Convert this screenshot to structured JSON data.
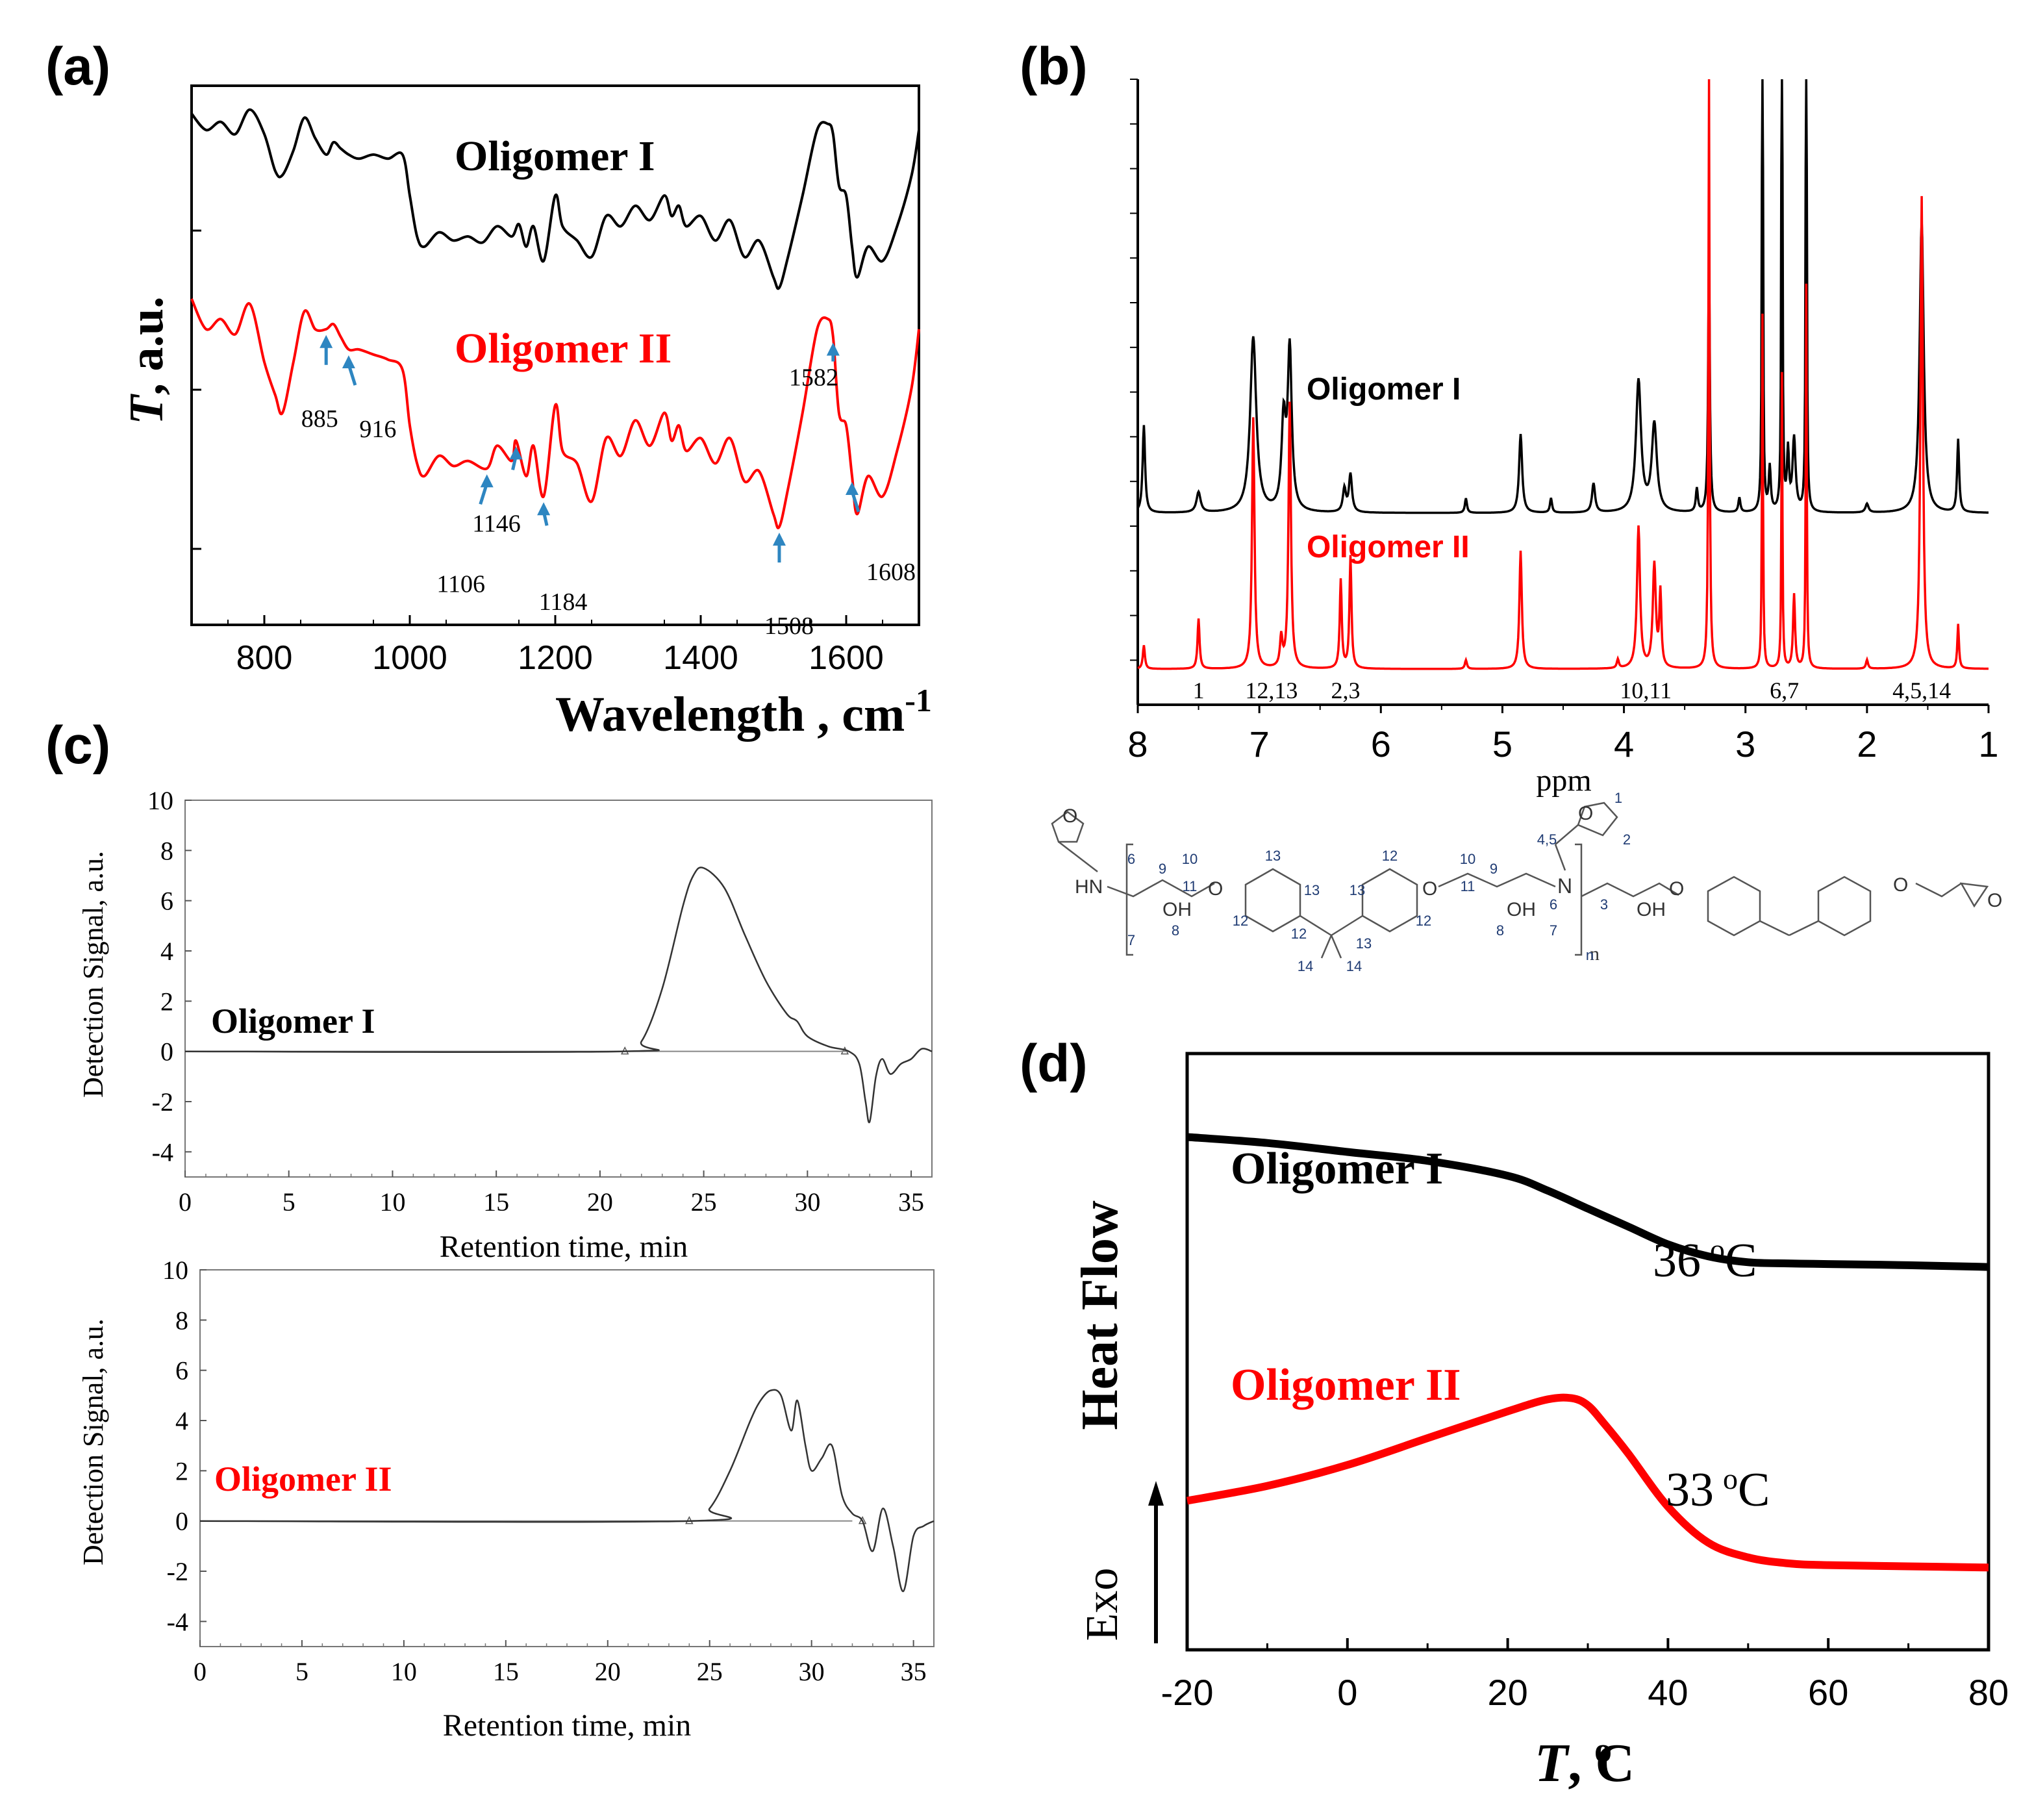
{
  "colors": {
    "black": "#000000",
    "red": "#ff0000",
    "arrow": "#2e86c1",
    "axis_gray": "#666666",
    "struct_blue": "#1f3b73"
  },
  "chart_data": [
    {
      "id": "a",
      "panel_label": "(a)",
      "type": "line",
      "title": "",
      "xlabel": "Wavelength , cm-1",
      "xlabel_main": "Wavelength , cm",
      "xlabel_sup": "-1",
      "ylabel": "T, a.u.",
      "ylabel_T": "T",
      "ylabel_rest": ", a.u.",
      "xlim": [
        700,
        1700
      ],
      "xticks": [
        "800",
        "1000",
        "1200",
        "1400",
        "1600"
      ],
      "xtick_values": [
        800,
        1000,
        1200,
        1400,
        1600
      ],
      "series": [
        {
          "name": "Oligomer I",
          "color": "#000000",
          "x": [
            700,
            720,
            740,
            760,
            780,
            800,
            815,
            825,
            840,
            855,
            870,
            885,
            895,
            905,
            916,
            930,
            950,
            970,
            990,
            1000,
            1010,
            1020,
            1040,
            1060,
            1080,
            1100,
            1120,
            1140,
            1150,
            1160,
            1170,
            1184,
            1200,
            1210,
            1230,
            1250,
            1270,
            1290,
            1310,
            1330,
            1350,
            1360,
            1370,
            1380,
            1400,
            1420,
            1440,
            1460,
            1480,
            1500,
            1508,
            1520,
            1540,
            1560,
            1575,
            1582,
            1590,
            1600,
            1608,
            1615,
            1630,
            1650,
            1670,
            1690,
            1700
          ],
          "y": [
            1.0,
            0.92,
            0.96,
            0.9,
            1.02,
            0.9,
            0.72,
            0.7,
            0.82,
            0.98,
            0.88,
            0.8,
            0.86,
            0.83,
            0.8,
            0.78,
            0.8,
            0.78,
            0.8,
            0.6,
            0.4,
            0.35,
            0.42,
            0.38,
            0.4,
            0.37,
            0.45,
            0.4,
            0.46,
            0.35,
            0.45,
            0.28,
            0.6,
            0.45,
            0.38,
            0.3,
            0.5,
            0.45,
            0.55,
            0.48,
            0.6,
            0.5,
            0.55,
            0.45,
            0.5,
            0.38,
            0.48,
            0.3,
            0.38,
            0.2,
            0.15,
            0.3,
            0.6,
            0.92,
            0.95,
            0.9,
            0.65,
            0.6,
            0.35,
            0.2,
            0.35,
            0.28,
            0.45,
            0.7,
            0.92
          ]
        },
        {
          "name": "Oligomer II",
          "color": "#ff0000",
          "x": [
            700,
            720,
            740,
            760,
            780,
            800,
            815,
            825,
            840,
            855,
            870,
            885,
            895,
            905,
            916,
            930,
            950,
            970,
            990,
            1000,
            1010,
            1020,
            1040,
            1060,
            1080,
            1106,
            1120,
            1140,
            1146,
            1160,
            1170,
            1184,
            1200,
            1210,
            1230,
            1250,
            1270,
            1290,
            1310,
            1330,
            1350,
            1360,
            1370,
            1380,
            1400,
            1420,
            1440,
            1460,
            1480,
            1500,
            1508,
            1520,
            1540,
            1560,
            1575,
            1582,
            1590,
            1600,
            1608,
            1615,
            1630,
            1650,
            1670,
            1690,
            1700
          ],
          "y": [
            1.0,
            0.88,
            0.92,
            0.86,
            0.98,
            0.75,
            0.62,
            0.55,
            0.75,
            0.95,
            0.88,
            0.88,
            0.9,
            0.85,
            0.8,
            0.8,
            0.78,
            0.76,
            0.72,
            0.5,
            0.35,
            0.3,
            0.38,
            0.34,
            0.36,
            0.33,
            0.42,
            0.36,
            0.44,
            0.3,
            0.42,
            0.22,
            0.58,
            0.4,
            0.35,
            0.2,
            0.45,
            0.38,
            0.52,
            0.42,
            0.55,
            0.44,
            0.5,
            0.4,
            0.45,
            0.35,
            0.45,
            0.28,
            0.32,
            0.15,
            0.1,
            0.25,
            0.55,
            0.88,
            0.92,
            0.85,
            0.55,
            0.5,
            0.3,
            0.15,
            0.3,
            0.22,
            0.4,
            0.65,
            0.88
          ]
        }
      ],
      "annotations": [
        {
          "text": "885",
          "x": 885
        },
        {
          "text": "916",
          "x": 916
        },
        {
          "text": "1106",
          "x": 1106
        },
        {
          "text": "1146",
          "x": 1146
        },
        {
          "text": "1184",
          "x": 1184
        },
        {
          "text": "1508",
          "x": 1508
        },
        {
          "text": "1582",
          "x": 1582
        },
        {
          "text": "1608",
          "x": 1608
        }
      ]
    },
    {
      "id": "b",
      "panel_label": "(b)",
      "type": "line",
      "title": "",
      "xlabel": "ppm",
      "ylabel": "",
      "xlim": [
        8,
        1
      ],
      "xticks": [
        "8",
        "7",
        "6",
        "5",
        "4",
        "3",
        "2",
        "1"
      ],
      "xtick_values": [
        8,
        7,
        6,
        5,
        4,
        3,
        2,
        1
      ],
      "series": [
        {
          "name": "Oligomer I",
          "color": "#000000",
          "peaks": [
            [
              7.95,
              0.3,
              0.012
            ],
            [
              7.5,
              0.07,
              0.02
            ],
            [
              7.05,
              0.6,
              0.03
            ],
            [
              6.8,
              0.3,
              0.02
            ],
            [
              6.75,
              0.55,
              0.02
            ],
            [
              6.3,
              0.08,
              0.015
            ],
            [
              6.25,
              0.13,
              0.015
            ],
            [
              5.3,
              0.05,
              0.01
            ],
            [
              4.85,
              0.27,
              0.015
            ],
            [
              4.6,
              0.05,
              0.01
            ],
            [
              4.25,
              0.1,
              0.015
            ],
            [
              3.88,
              0.45,
              0.025
            ],
            [
              3.75,
              0.3,
              0.025
            ],
            [
              3.4,
              0.08,
              0.01
            ],
            [
              3.3,
              0.9,
              0.008
            ],
            [
              3.05,
              0.05,
              0.01
            ],
            [
              2.86,
              3.0,
              0.004
            ],
            [
              2.8,
              0.15,
              0.01
            ],
            [
              2.7,
              3.0,
              0.004
            ],
            [
              2.65,
              0.2,
              0.01
            ],
            [
              2.6,
              0.25,
              0.015
            ],
            [
              2.5,
              3.0,
              0.004
            ],
            [
              2.0,
              0.03,
              0.015
            ],
            [
              1.55,
              1.0,
              0.02
            ],
            [
              1.25,
              0.25,
              0.01
            ]
          ]
        },
        {
          "name": "Oligomer II",
          "color": "#ff0000",
          "peaks": [
            [
              7.95,
              0.08,
              0.01
            ],
            [
              7.5,
              0.17,
              0.01
            ],
            [
              7.05,
              0.85,
              0.012
            ],
            [
              6.82,
              0.1,
              0.012
            ],
            [
              6.75,
              0.9,
              0.012
            ],
            [
              6.33,
              0.3,
              0.01
            ],
            [
              6.25,
              0.38,
              0.01
            ],
            [
              5.3,
              0.03,
              0.01
            ],
            [
              4.85,
              0.4,
              0.012
            ],
            [
              4.05,
              0.03,
              0.01
            ],
            [
              3.88,
              0.48,
              0.015
            ],
            [
              3.75,
              0.35,
              0.015
            ],
            [
              3.7,
              0.25,
              0.01
            ],
            [
              3.3,
              2.0,
              0.006
            ],
            [
              2.86,
              1.2,
              0.005
            ],
            [
              2.7,
              1.0,
              0.005
            ],
            [
              2.6,
              0.25,
              0.01
            ],
            [
              2.5,
              1.3,
              0.005
            ],
            [
              2.0,
              0.03,
              0.01
            ],
            [
              1.55,
              1.6,
              0.012
            ],
            [
              1.25,
              0.15,
              0.008
            ]
          ]
        }
      ],
      "peak_labels": [
        {
          "text": "1",
          "ppm": 7.5
        },
        {
          "text": "12,13",
          "ppm": 6.9
        },
        {
          "text": "2,3",
          "ppm": 6.29
        },
        {
          "text": "10,11",
          "ppm": 3.82
        },
        {
          "text": "6,7",
          "ppm": 2.68
        },
        {
          "text": "4,5,14",
          "ppm": 1.55
        }
      ]
    },
    {
      "id": "c1",
      "panel_label": "(c)",
      "type": "line",
      "title": "",
      "xlabel": "Retention time, min",
      "ylabel": "Detection Signal, a.u.",
      "xlim": [
        0,
        36
      ],
      "ylim": [
        -5,
        10
      ],
      "xticks": [
        "0",
        "5",
        "10",
        "15",
        "20",
        "25",
        "30",
        "35"
      ],
      "xtick_values": [
        0,
        5,
        10,
        15,
        20,
        25,
        30,
        35
      ],
      "yticks": [
        "10",
        "8",
        "6",
        "4",
        "2",
        "0",
        "-2",
        "-4"
      ],
      "ytick_values": [
        10,
        8,
        6,
        4,
        2,
        0,
        -2,
        -4
      ],
      "series": [
        {
          "name": "Oligomer I",
          "color": "#000000",
          "x": [
            0,
            21,
            22,
            23,
            24,
            24.5,
            25,
            26,
            27,
            28,
            29,
            29.5,
            30,
            31,
            32,
            32.5,
            32.8,
            33,
            33.3,
            33.6,
            34,
            34.5,
            35,
            35.5,
            36
          ],
          "y": [
            0,
            0,
            0.4,
            2.5,
            5.8,
            7.0,
            7.3,
            6.5,
            4.6,
            2.8,
            1.5,
            1.2,
            0.6,
            0.2,
            0,
            -0.5,
            -2.0,
            -2.8,
            -1.0,
            -0.3,
            -0.9,
            -0.5,
            -0.3,
            0.1,
            0
          ]
        }
      ]
    },
    {
      "id": "c2",
      "panel_label": "",
      "type": "line",
      "title": "",
      "xlabel": "Retention time, min",
      "ylabel": "Detection Signal, a.u.",
      "xlim": [
        0,
        36
      ],
      "ylim": [
        -5,
        10
      ],
      "xticks": [
        "0",
        "5",
        "10",
        "15",
        "20",
        "25",
        "30",
        "35"
      ],
      "xtick_values": [
        0,
        5,
        10,
        15,
        20,
        25,
        30,
        35
      ],
      "yticks": [
        "10",
        "8",
        "6",
        "4",
        "2",
        "0",
        "-2",
        "-4"
      ],
      "ytick_values": [
        10,
        8,
        6,
        4,
        2,
        0,
        -2,
        -4
      ],
      "series": [
        {
          "name": "Oligomer II",
          "color": "#000000",
          "x": [
            0,
            24,
            25,
            26,
            27,
            27.5,
            28,
            28.5,
            29,
            29.3,
            29.7,
            30,
            30.5,
            31,
            31.5,
            32,
            32.5,
            33,
            33.5,
            34,
            34.5,
            35,
            35.5,
            36
          ],
          "y": [
            0,
            0,
            0.5,
            2.0,
            4.0,
            4.8,
            5.2,
            5.0,
            3.6,
            4.8,
            3.0,
            2.0,
            2.5,
            3.0,
            1.0,
            0.3,
            0,
            -1.2,
            0.5,
            -1.0,
            -2.8,
            -0.6,
            -0.2,
            0
          ]
        }
      ]
    },
    {
      "id": "d",
      "panel_label": "(d)",
      "type": "line",
      "title": "",
      "xlabel": "T, oC",
      "xlabel_T": "T",
      "xlabel_o": "o",
      "xlabel_unit": ", C",
      "ylabel": "Exo  Heat Flow",
      "ylabel_exo": "Exo",
      "ylabel_hf": "Heat Flow",
      "xlim": [
        -20,
        80
      ],
      "xticks": [
        "-20",
        "0",
        "20",
        "40",
        "60",
        "80"
      ],
      "xtick_values": [
        -20,
        0,
        20,
        40,
        60,
        80
      ],
      "series": [
        {
          "name": "Oligomer I",
          "color": "#000000",
          "x": [
            -20,
            -10,
            0,
            10,
            20,
            25,
            30,
            35,
            40,
            45,
            50,
            55,
            60,
            70,
            80
          ],
          "y": [
            8.6,
            8.5,
            8.35,
            8.2,
            7.95,
            7.7,
            7.4,
            7.1,
            6.8,
            6.6,
            6.5,
            6.48,
            6.47,
            6.45,
            6.42
          ]
        },
        {
          "name": "Oligomer II",
          "color": "#ff0000",
          "x": [
            -20,
            -10,
            0,
            10,
            20,
            25,
            28,
            30,
            32,
            35,
            40,
            45,
            50,
            55,
            60,
            70,
            80
          ],
          "y": [
            2.5,
            2.75,
            3.1,
            3.55,
            4.0,
            4.2,
            4.22,
            4.1,
            3.8,
            3.3,
            2.4,
            1.8,
            1.55,
            1.45,
            1.42,
            1.4,
            1.38
          ]
        }
      ],
      "annotations": [
        {
          "text": "36 oC",
          "value": "36",
          "unit": "C"
        },
        {
          "text": "33 oC",
          "value": "33",
          "unit": "C"
        }
      ]
    }
  ],
  "structure": {
    "labels": [
      "1",
      "2",
      "3",
      "4,5",
      "6",
      "7",
      "8",
      "9",
      "10",
      "11",
      "12",
      "13",
      "14",
      "n"
    ],
    "atoms": {
      "hn": "HN",
      "n": "N",
      "o": "O",
      "oh": "OH"
    },
    "diagram_labels": [
      "6",
      "7",
      "9",
      "8",
      "10",
      "11",
      "13",
      "13",
      "12",
      "12",
      "14",
      "13",
      "12",
      "12",
      "13",
      "14",
      "10",
      "11",
      "9",
      "8",
      "6",
      "7",
      "4,5",
      "3",
      "1",
      "2",
      "n"
    ]
  }
}
